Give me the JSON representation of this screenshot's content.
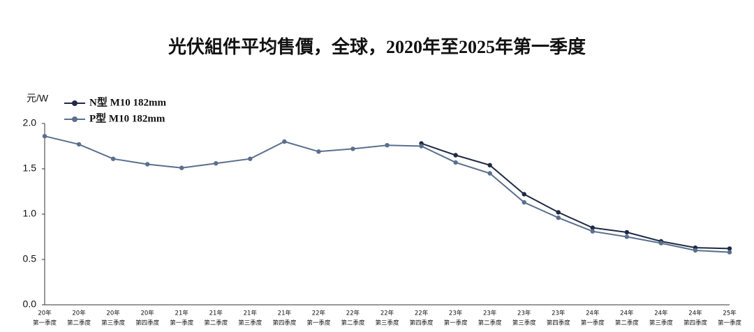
{
  "chart_data": {
    "type": "line",
    "title": "光伏組件平均售價，全球，2020年至2025年第一季度",
    "y_label": "元/W",
    "categories": [
      [
        "20年",
        "第一季度"
      ],
      [
        "20年",
        "第二季度"
      ],
      [
        "20年",
        "第三季度"
      ],
      [
        "20年",
        "第四季度"
      ],
      [
        "21年",
        "第一季度"
      ],
      [
        "21年",
        "第二季度"
      ],
      [
        "21年",
        "第三季度"
      ],
      [
        "21年",
        "第四季度"
      ],
      [
        "22年",
        "第一季度"
      ],
      [
        "22年",
        "第二季度"
      ],
      [
        "22年",
        "第三季度"
      ],
      [
        "22年",
        "第四季度"
      ],
      [
        "23年",
        "第一季度"
      ],
      [
        "23年",
        "第二季度"
      ],
      [
        "23年",
        "第三季度"
      ],
      [
        "23年",
        "第四季度"
      ],
      [
        "24年",
        "第一季度"
      ],
      [
        "24年",
        "第二季度"
      ],
      [
        "24年",
        "第三季度"
      ],
      [
        "24年",
        "第四季度"
      ],
      [
        "25年",
        "第一季度"
      ]
    ],
    "series": [
      {
        "name": "N型 M10 182mm",
        "color": "#1f2a44",
        "values": [
          null,
          null,
          null,
          null,
          null,
          null,
          null,
          null,
          null,
          null,
          null,
          1.78,
          1.65,
          1.54,
          1.22,
          1.02,
          0.85,
          0.8,
          0.7,
          0.63,
          0.62
        ]
      },
      {
        "name": "P型 M10 182mm",
        "color": "#5a6f8c",
        "values": [
          1.86,
          1.77,
          1.61,
          1.55,
          1.51,
          1.56,
          1.61,
          1.8,
          1.69,
          1.72,
          1.76,
          1.75,
          1.57,
          1.45,
          1.13,
          0.96,
          0.81,
          0.75,
          0.68,
          0.6,
          0.58
        ]
      }
    ],
    "ylim": [
      0,
      2
    ],
    "yticks": [
      {
        "value": 0,
        "label": "0.0"
      },
      0.5,
      {
        "value": 1,
        "label": "1.0"
      },
      1.5,
      {
        "value": 2,
        "label": "2.0"
      }
    ],
    "legend": "top-left",
    "grid": false
  }
}
